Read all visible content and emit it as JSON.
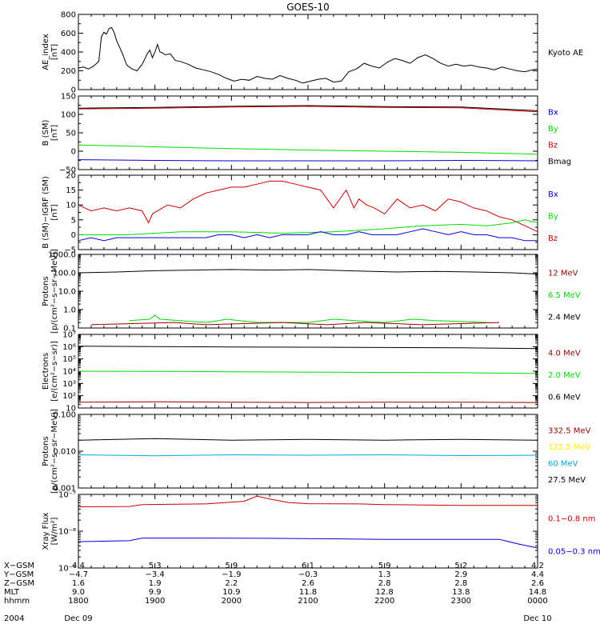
{
  "title": "GOES-10",
  "colors": {
    "black": "#000000",
    "red": "#cc0000",
    "darkred": "#990000",
    "green": "#00dd00",
    "blue": "#0000dd",
    "yellow": "#ffee00",
    "cyan": "#00a8dd"
  },
  "chart_data": [
    {
      "id": "ae",
      "type": "line",
      "ylabel": [
        "AE_index",
        "[nT]"
      ],
      "ylim": [
        0,
        800
      ],
      "scale": "linear",
      "yticks": [
        {
          "v": 0,
          "t": "0"
        },
        {
          "v": 200,
          "t": "200"
        },
        {
          "v": 400,
          "t": "400"
        },
        {
          "v": 600,
          "t": "600"
        },
        {
          "v": 800,
          "t": "800"
        }
      ],
      "series": [
        {
          "name": "Kyoto AE",
          "color": "#000000",
          "x": [
            0,
            4,
            8,
            12,
            16,
            18,
            20,
            22,
            24,
            26,
            28,
            30,
            34,
            38,
            42,
            46,
            50,
            54,
            56,
            58,
            60,
            62,
            64,
            66,
            68,
            72,
            76,
            80,
            86,
            92,
            98,
            104,
            110,
            116,
            122,
            128,
            134,
            140,
            146,
            152,
            158,
            164,
            170,
            176,
            182,
            188,
            194,
            200,
            206,
            212,
            218,
            224,
            230,
            236,
            242,
            248,
            254,
            260,
            266,
            272,
            278,
            284,
            290,
            296,
            302,
            308,
            314,
            320,
            326,
            332,
            338,
            344,
            350,
            356,
            360
          ],
          "y": [
            230,
            240,
            220,
            250,
            300,
            560,
            610,
            590,
            650,
            660,
            610,
            520,
            400,
            260,
            220,
            200,
            270,
            380,
            420,
            340,
            400,
            480,
            400,
            390,
            370,
            380,
            310,
            300,
            270,
            230,
            210,
            190,
            160,
            120,
            90,
            110,
            100,
            140,
            120,
            110,
            150,
            120,
            100,
            70,
            90,
            110,
            120,
            80,
            90,
            190,
            220,
            280,
            250,
            230,
            290,
            330,
            310,
            280,
            340,
            370,
            330,
            280,
            250,
            270,
            250,
            260,
            240,
            230,
            210,
            240,
            220,
            200,
            190,
            210,
            220
          ]
        }
      ],
      "legend": [
        {
          "label": "Kyoto AE",
          "color": "#000000"
        }
      ]
    },
    {
      "id": "bsm",
      "type": "line",
      "ylabel": [
        "B (SM)",
        "[nT]"
      ],
      "ylim": [
        -50,
        150
      ],
      "scale": "linear",
      "yticks": [
        {
          "v": -50,
          "t": "−50"
        },
        {
          "v": 0,
          "t": "0"
        },
        {
          "v": 50,
          "t": "50"
        },
        {
          "v": 100,
          "t": "100"
        },
        {
          "v": 150,
          "t": "150"
        }
      ],
      "series": [
        {
          "name": "Bmag",
          "color": "#000000",
          "x": [
            0,
            60,
            120,
            180,
            240,
            300,
            360
          ],
          "y": [
            117,
            119,
            122,
            124,
            121,
            120,
            110
          ]
        },
        {
          "name": "Bz",
          "color": "#cc0000",
          "x": [
            0,
            60,
            120,
            180,
            240,
            300,
            360
          ],
          "y": [
            115,
            117,
            120,
            122,
            119,
            118,
            107
          ]
        },
        {
          "name": "By",
          "color": "#00dd00",
          "x": [
            0,
            60,
            120,
            180,
            240,
            300,
            360
          ],
          "y": [
            17,
            12,
            7,
            3,
            0,
            -3,
            -8
          ]
        },
        {
          "name": "Bx",
          "color": "#0000dd",
          "x": [
            0,
            60,
            120,
            180,
            240,
            300,
            360
          ],
          "y": [
            -23,
            -25,
            -26,
            -26,
            -26,
            -25,
            -26
          ]
        }
      ],
      "legend": [
        {
          "label": "Bx",
          "color": "#0000dd"
        },
        {
          "label": "By",
          "color": "#00dd00"
        },
        {
          "label": "Bz",
          "color": "#cc0000"
        },
        {
          "label": "Bmag",
          "color": "#000000"
        }
      ]
    },
    {
      "id": "bigrf",
      "type": "line",
      "ylabel": [
        "B (SM)−IGRF (SM)",
        "[nT]"
      ],
      "ylim": [
        -5,
        20
      ],
      "scale": "linear",
      "yticks": [
        {
          "v": -5,
          "t": "−5"
        },
        {
          "v": 0,
          "t": "0"
        },
        {
          "v": 5,
          "t": "5"
        },
        {
          "v": 10,
          "t": "10"
        },
        {
          "v": 15,
          "t": "15"
        },
        {
          "v": 20,
          "t": "20"
        }
      ],
      "series": [
        {
          "name": "Bz",
          "color": "#cc0000",
          "x": [
            0,
            10,
            20,
            30,
            40,
            50,
            55,
            58,
            62,
            70,
            80,
            90,
            100,
            110,
            120,
            130,
            140,
            150,
            160,
            170,
            180,
            190,
            200,
            210,
            216,
            220,
            226,
            232,
            240,
            250,
            260,
            270,
            280,
            290,
            300,
            310,
            320,
            330,
            340,
            350,
            360
          ],
          "y": [
            10,
            8,
            9,
            8,
            9,
            8,
            4,
            7,
            8,
            10,
            9,
            12,
            14,
            15,
            16,
            16,
            17,
            18,
            18,
            17,
            16,
            15,
            9,
            15,
            9,
            12,
            10,
            9,
            7,
            12,
            9,
            10,
            8,
            12,
            11,
            9,
            8,
            6,
            5,
            3,
            1
          ]
        },
        {
          "name": "By",
          "color": "#00dd00",
          "x": [
            0,
            40,
            80,
            120,
            160,
            200,
            240,
            270,
            300,
            320,
            340,
            350,
            360
          ],
          "y": [
            0,
            0,
            1,
            1,
            0.5,
            1,
            2,
            3,
            3.5,
            3,
            4,
            5,
            4
          ]
        },
        {
          "name": "Bx",
          "color": "#0000dd",
          "x": [
            0,
            10,
            20,
            30,
            40,
            50,
            60,
            70,
            80,
            90,
            100,
            110,
            120,
            130,
            140,
            150,
            160,
            170,
            180,
            190,
            200,
            210,
            220,
            230,
            240,
            250,
            260,
            270,
            280,
            290,
            300,
            310,
            320,
            330,
            340,
            350,
            360
          ],
          "y": [
            -2,
            -1,
            -2,
            -1,
            -1,
            -1,
            -1,
            -1,
            -1,
            -1,
            -1,
            0,
            0,
            -1,
            0,
            -1,
            0,
            0,
            0,
            1,
            0,
            0,
            1,
            0,
            0,
            0,
            1,
            2,
            1,
            0,
            1,
            0,
            0,
            -1,
            -1,
            -2,
            -2
          ]
        }
      ],
      "legend": [
        {
          "label": "Bx",
          "color": "#0000dd"
        },
        {
          "label": "By",
          "color": "#00dd00"
        },
        {
          "label": "Bz",
          "color": "#cc0000"
        }
      ]
    },
    {
      "id": "protons_low",
      "type": "line",
      "ylabel": [
        "Protons",
        "[p/(cm²−s−sr−MeV)]"
      ],
      "ylim": [
        0.1,
        1000
      ],
      "scale": "log",
      "yticks": [
        {
          "v": 0.1,
          "t": "0.1"
        },
        {
          "v": 1,
          "t": "1.0"
        },
        {
          "v": 10,
          "t": "10.0"
        },
        {
          "v": 100,
          "t": "100.0"
        },
        {
          "v": 1000,
          "t": "1000.0"
        }
      ],
      "series": [
        {
          "name": "2.4 MeV",
          "color": "#000000",
          "x": [
            0,
            30,
            60,
            90,
            120,
            150,
            180,
            210,
            230,
            250,
            280,
            310,
            340,
            360
          ],
          "y": [
            100,
            110,
            130,
            140,
            150,
            140,
            150,
            130,
            120,
            110,
            120,
            110,
            100,
            85
          ]
        },
        {
          "name": "6.5 MeV",
          "color": "#00dd00",
          "x": [
            40,
            56,
            60,
            64,
            100,
            110,
            116,
            140,
            180,
            200,
            240,
            262,
            280,
            320
          ],
          "y": [
            0.25,
            0.3,
            0.5,
            0.3,
            0.2,
            0.25,
            0.3,
            0.2,
            0.2,
            0.3,
            0.2,
            0.3,
            0.25,
            0.2
          ]
        },
        {
          "name": "12 MeV",
          "color": "#990000",
          "x": [
            10,
            75,
            100,
            160,
            195,
            225,
            270,
            330
          ],
          "y": [
            0.15,
            0.2,
            0.15,
            0.2,
            0.15,
            0.2,
            0.15,
            0.2
          ]
        }
      ],
      "legend": [
        {
          "label": "12 MeV",
          "color": "#990000"
        },
        {
          "label": "6.5 MeV",
          "color": "#00dd00"
        },
        {
          "label": "2.4 MeV",
          "color": "#000000"
        }
      ]
    },
    {
      "id": "electrons",
      "type": "line",
      "ylabel": [
        "Electrons",
        "[e/(cm²−s−sr)]"
      ],
      "ylim": [
        10,
        10000000
      ],
      "scale": "log",
      "yticks": [
        {
          "v": 10,
          "t": "10"
        },
        {
          "v": 100,
          "t": "10²"
        },
        {
          "v": 1000,
          "t": "10³"
        },
        {
          "v": 10000,
          "t": "10⁴"
        },
        {
          "v": 100000,
          "t": "10⁵"
        },
        {
          "v": 1000000,
          "t": "10⁶"
        },
        {
          "v": 10000000,
          "t": "10⁷"
        }
      ],
      "series": [
        {
          "name": "0.6 MeV",
          "color": "#000000",
          "x": [
            0,
            60,
            120,
            180,
            240,
            300,
            360
          ],
          "y": [
            1100000,
            1000000,
            950000,
            900000,
            850000,
            800000,
            700000
          ]
        },
        {
          "name": "2.0 MeV",
          "color": "#00dd00",
          "x": [
            0,
            60,
            120,
            180,
            240,
            300,
            360
          ],
          "y": [
            10000,
            9500,
            9000,
            8500,
            8000,
            7500,
            6500
          ]
        },
        {
          "name": "4.0 MeV",
          "color": "#990000",
          "x": [
            0,
            60,
            120,
            180,
            240,
            300,
            360
          ],
          "y": [
            30,
            32,
            30,
            28,
            30,
            30,
            28
          ]
        }
      ],
      "legend": [
        {
          "label": "4.0 MeV",
          "color": "#990000"
        },
        {
          "label": "2.0 MeV",
          "color": "#00dd00"
        },
        {
          "label": "0.6 MeV",
          "color": "#000000"
        }
      ]
    },
    {
      "id": "protons_high",
      "type": "line",
      "ylabel": [
        "Protons",
        "[p/(cm²−s−sr−MeV)]"
      ],
      "ylim": [
        0.001,
        0.1
      ],
      "scale": "log",
      "yticks": [
        {
          "v": 0.001,
          "t": "0.001"
        },
        {
          "v": 0.01,
          "t": "0.010"
        },
        {
          "v": 0.1,
          "t": "0.100"
        }
      ],
      "series": [
        {
          "name": "27.5 MeV",
          "color": "#000000",
          "x": [
            0,
            60,
            120,
            180,
            240,
            300,
            360
          ],
          "y": [
            0.02,
            0.022,
            0.02,
            0.021,
            0.02,
            0.021,
            0.02
          ]
        },
        {
          "name": "60 MeV",
          "color": "#00a8dd",
          "x": [
            0,
            60,
            120,
            180,
            240,
            300,
            360
          ],
          "y": [
            0.008,
            0.0075,
            0.008,
            0.0078,
            0.008,
            0.0076,
            0.0078
          ]
        }
      ],
      "legend": [
        {
          "label": "332.5 MeV",
          "color": "#990000"
        },
        {
          "label": "122.5 MeV",
          "color": "#ffee00"
        },
        {
          "label": "60 MeV",
          "color": "#00a8dd"
        },
        {
          "label": "27.5 MeV",
          "color": "#000000"
        }
      ]
    },
    {
      "id": "xray",
      "type": "line",
      "ylabel": [
        "Xray  Flux",
        "[W/m²]"
      ],
      "ylim": [
        1e-09,
        1e-07
      ],
      "scale": "log",
      "yticks": [
        {
          "v": 1e-09,
          "t": "10⁻⁹"
        },
        {
          "v": 1e-08,
          "t": "10⁻⁸"
        },
        {
          "v": 1e-07,
          "t": "10⁻⁷"
        }
      ],
      "series": [
        {
          "name": "0.1−0.8 nm",
          "color": "#cc0000",
          "x": [
            0,
            40,
            50,
            100,
            130,
            140,
            150,
            165,
            180,
            220,
            240,
            300,
            360
          ],
          "y": [
            4.6e-08,
            4.7e-08,
            5.3e-08,
            5.5e-08,
            6.5e-08,
            9e-08,
            7.5e-08,
            6e-08,
            5.6e-08,
            5.5e-08,
            5.3e-08,
            5e-08,
            5e-08
          ]
        },
        {
          "name": "0.05−0.3 nm",
          "color": "#0000dd",
          "x": [
            0,
            40,
            50,
            100,
            150,
            200,
            240,
            300,
            330,
            345,
            360
          ],
          "y": [
            5.2e-09,
            5.5e-09,
            6.5e-09,
            6.5e-09,
            6.4e-09,
            6.2e-09,
            6e-09,
            6e-09,
            6e-09,
            4.5e-09,
            3.5e-09
          ]
        }
      ],
      "legend": [
        {
          "label": "0.1−0.8 nm",
          "color": "#cc0000"
        },
        {
          "label": "0.05−0.3 nm",
          "color": "#0000dd"
        }
      ]
    }
  ],
  "x_axis": {
    "xlim": [
      0,
      360
    ],
    "rows": [
      {
        "label": "X−GSM",
        "values": [
          "4.4",
          "5.3",
          "5.9",
          "6.1",
          "5.9",
          "5.2",
          "4.2"
        ]
      },
      {
        "label": "Y−GSM",
        "values": [
          "−4.7",
          "−3.4",
          "−1.9",
          "−0.3",
          "1.3",
          "2.9",
          "4.4"
        ]
      },
      {
        "label": "Z−GSM",
        "values": [
          "1.6",
          "1.9",
          "2.2",
          "2.6",
          "2.8",
          "2.8",
          "2.6"
        ]
      },
      {
        "label": "MLT",
        "values": [
          "9.0",
          "9.9",
          "10.9",
          "11.8",
          "12.8",
          "13.8",
          "14.8"
        ]
      },
      {
        "label": "hhmm",
        "values": [
          "1800",
          "1900",
          "2000",
          "2100",
          "2200",
          "2300",
          "0000"
        ]
      }
    ],
    "year": "2004",
    "date_start": "Dec 09",
    "date_end": "Dec 10"
  }
}
